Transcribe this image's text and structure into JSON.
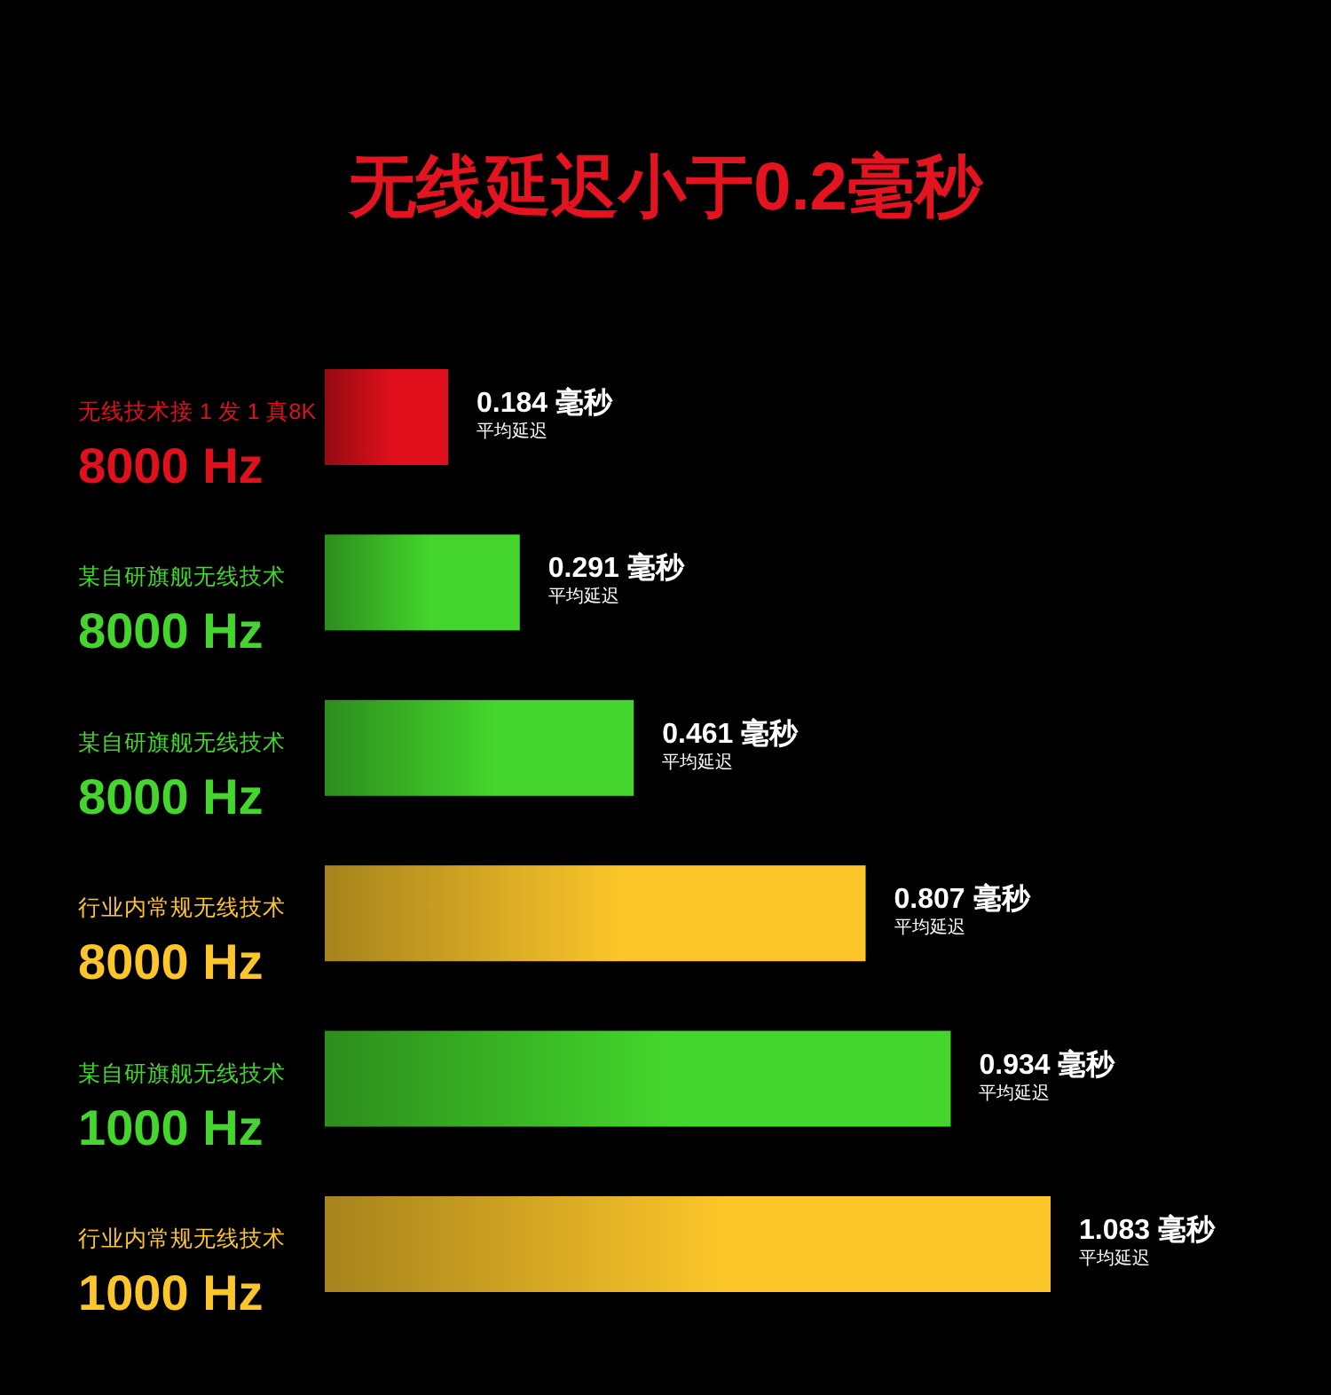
{
  "chart_data": {
    "type": "bar",
    "orientation": "horizontal",
    "title": "无线延迟小于0.2毫秒",
    "categories": [
      "无线技术接 1 发 1 真8K\n8000 Hz",
      "某自研旗舰无线技术\n8000 Hz",
      "某自研旗舰无线技术\n8000 Hz",
      "行业内常规无线技术\n8000 Hz",
      "某自研旗舰无线技术\n1000 Hz",
      "行业内常规无线技术\n1000 Hz"
    ],
    "values": [
      0.184,
      0.291,
      0.461,
      0.807,
      0.934,
      1.083
    ],
    "colors": [
      "#e0101c",
      "#44d62c",
      "#44d62c",
      "#fcc62a",
      "#44d62c",
      "#fcc62a"
    ],
    "value_labels": [
      "0.184 毫秒",
      "0.291 毫秒",
      "0.461 毫秒",
      "0.807 毫秒",
      "0.934 毫秒",
      "1.083 毫秒"
    ],
    "annotations": [
      "平均延迟",
      "平均延迟",
      "平均延迟",
      "平均延迟",
      "平均延迟",
      "平均延迟"
    ]
  }
}
